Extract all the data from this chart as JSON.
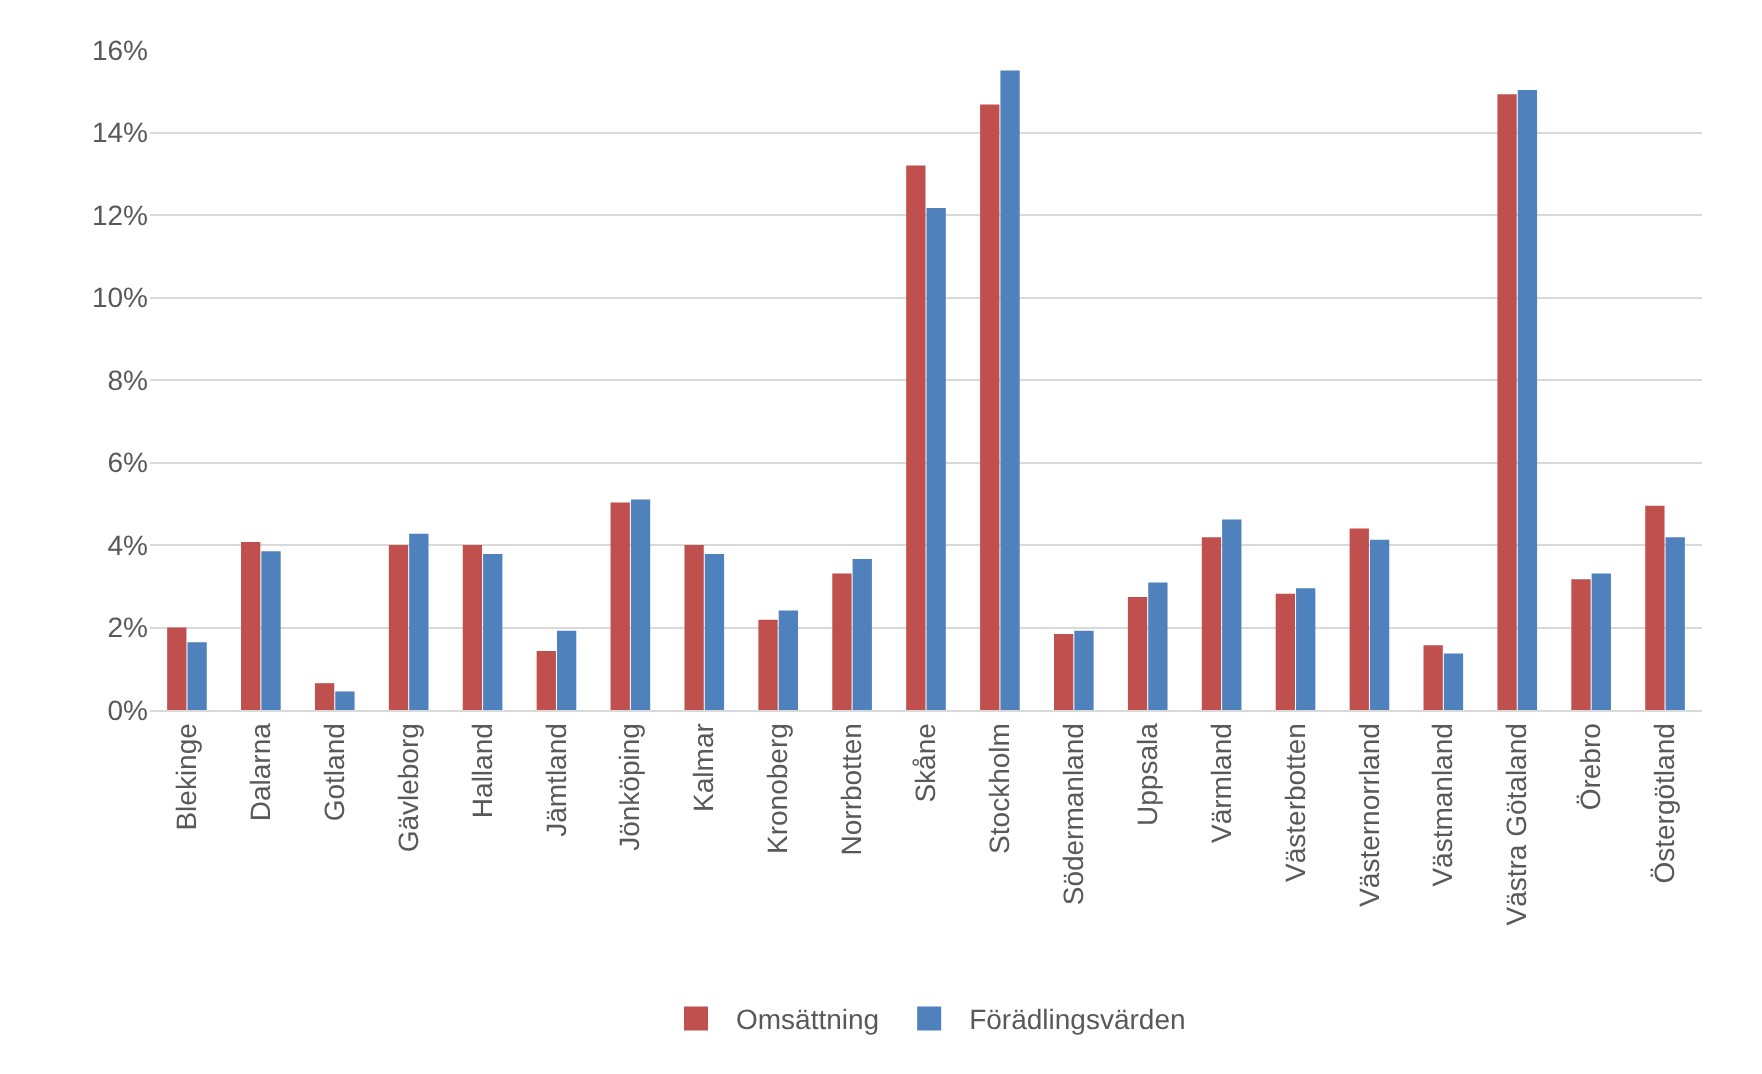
{
  "chart_data": {
    "type": "bar",
    "categories": [
      "Blekinge",
      "Dalarna",
      "Gotland",
      "Gävleborg",
      "Halland",
      "Jämtland",
      "Jönköping",
      "Kalmar",
      "Kronoberg",
      "Norrbotten",
      "Skåne",
      "Stockholm",
      "Södermanland",
      "Uppsala",
      "Värmland",
      "Västerbotten",
      "Västernorrland",
      "Västmanland",
      "Västra Götaland",
      "Örebro",
      "Östergötland"
    ],
    "series": [
      {
        "name": "Omsättning",
        "color": "#c0504d",
        "values": [
          2.0,
          4.07,
          0.65,
          4.0,
          4.0,
          1.43,
          5.03,
          4.0,
          2.19,
          3.31,
          13.2,
          14.68,
          1.84,
          2.74,
          4.19,
          2.82,
          4.4,
          1.57,
          14.93,
          3.17,
          4.95
        ]
      },
      {
        "name": "Förädlingsvärden",
        "color": "#4f81bd",
        "values": [
          1.64,
          3.85,
          0.45,
          4.27,
          3.78,
          1.92,
          5.1,
          3.78,
          2.41,
          3.66,
          12.17,
          15.5,
          1.92,
          3.09,
          4.62,
          2.95,
          4.13,
          1.37,
          15.03,
          3.31,
          4.19
        ]
      }
    ],
    "ylim": [
      0,
      16
    ],
    "yticks": [
      {
        "value": 0,
        "label": "0%"
      },
      {
        "value": 2,
        "label": "2%"
      },
      {
        "value": 4,
        "label": "4%"
      },
      {
        "value": 6,
        "label": "6%"
      },
      {
        "value": 8,
        "label": "8%"
      },
      {
        "value": 10,
        "label": "10%"
      },
      {
        "value": 12,
        "label": "12%"
      },
      {
        "value": 14,
        "label": "14%"
      },
      {
        "value": 16,
        "label": "16%"
      }
    ],
    "grid": "y",
    "legend": "bottom"
  }
}
